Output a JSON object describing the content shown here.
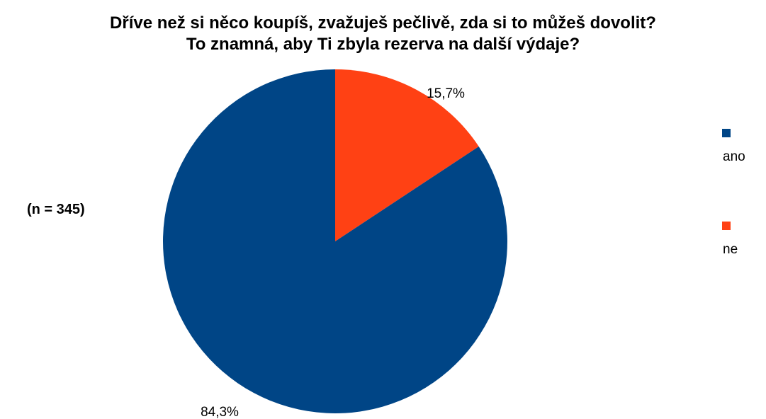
{
  "chart_data": {
    "type": "pie",
    "title": [
      "Dříve než si něco koupíš, zvažuješ pečlivě, zda si to můžeš dovolit?",
      "To znamná, aby Ti zbyla rezerva na další výdaje?"
    ],
    "annotation": "(n = 345)",
    "slices": [
      {
        "label": "ne",
        "value": 15.7,
        "display": "15,7%",
        "color": "#ff4114"
      },
      {
        "label": "ano",
        "value": 84.3,
        "display": "84,3%",
        "color": "#004586"
      }
    ],
    "legend": {
      "position": "right",
      "entries": [
        "ano",
        "ne"
      ]
    },
    "start_angle": "12 o'clock, clockwise"
  }
}
